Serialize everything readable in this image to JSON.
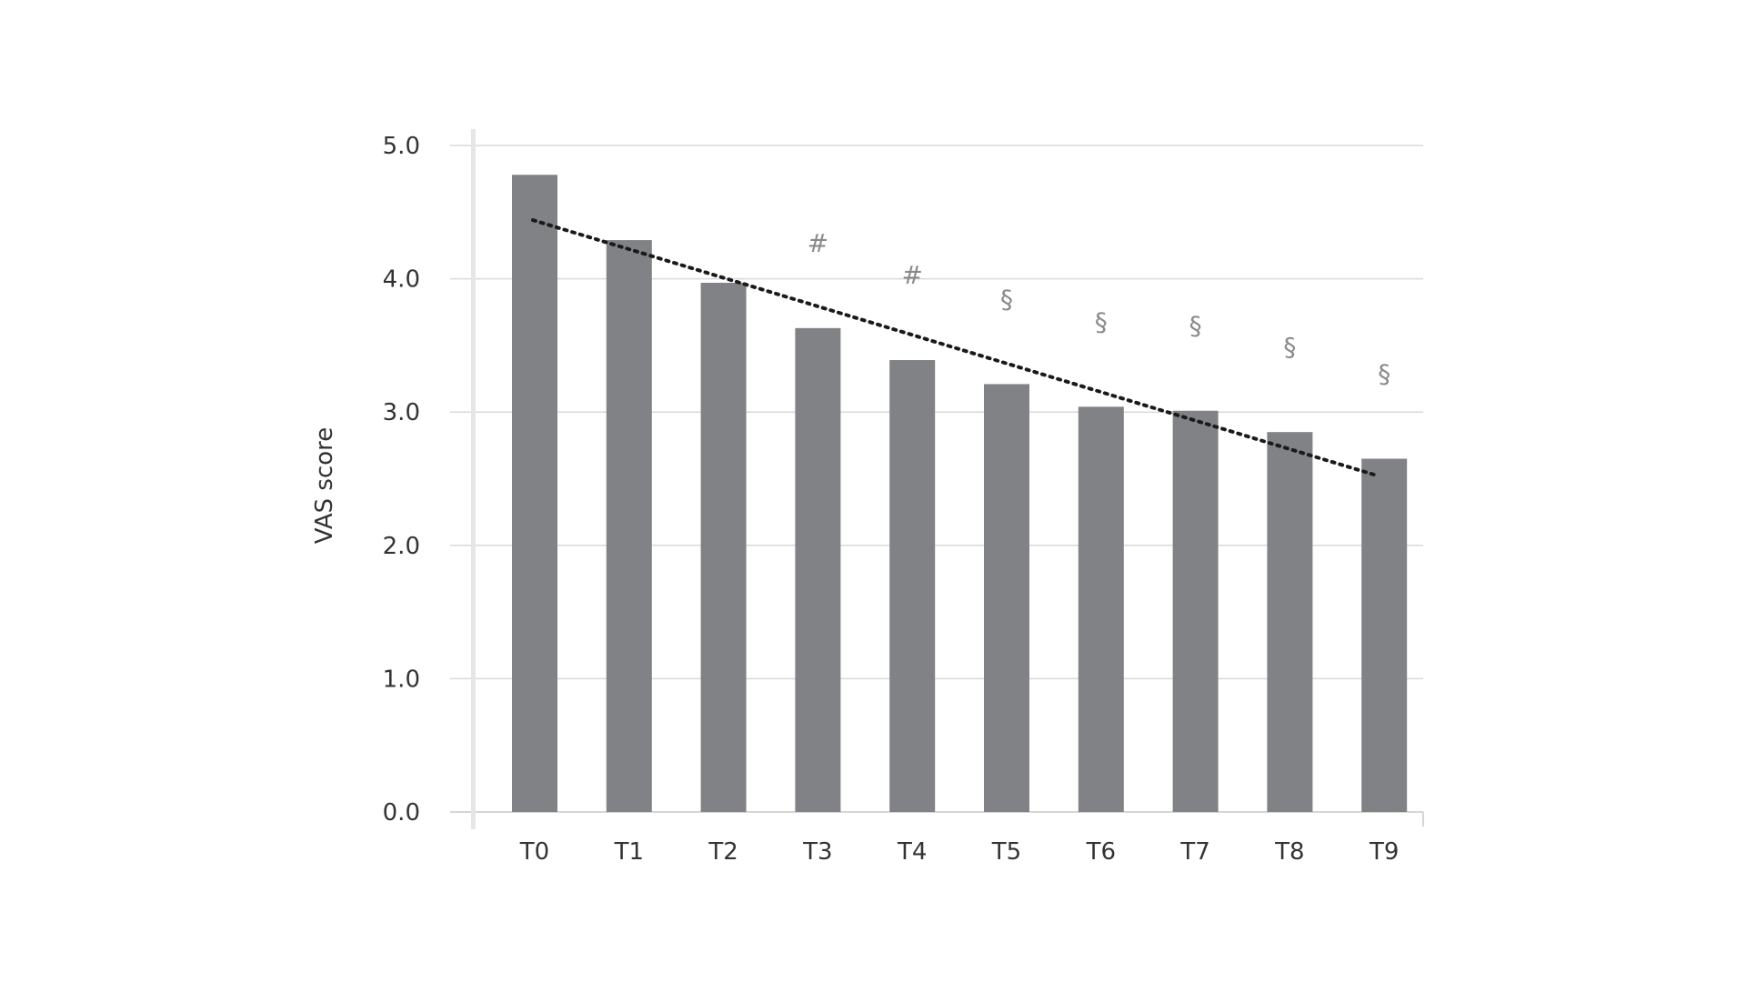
{
  "chart_data": {
    "type": "bar",
    "categories": [
      "T0",
      "T1",
      "T2",
      "T3",
      "T4",
      "T5",
      "T6",
      "T7",
      "T8",
      "T9"
    ],
    "values": [
      4.78,
      4.29,
      3.97,
      3.63,
      3.39,
      3.21,
      3.04,
      3.01,
      2.85,
      2.65
    ],
    "annotations": [
      "",
      "",
      "",
      "#",
      "#",
      "§",
      "§",
      "§",
      "§",
      "§"
    ],
    "title": "",
    "xlabel": "",
    "ylabel": "VAS score",
    "ylim": [
      0,
      5
    ],
    "yticks": [
      "0.0",
      "1.0",
      "2.0",
      "3.0",
      "4.0",
      "5.0"
    ],
    "trendline": {
      "style": "dotted",
      "start": {
        "category": "T0",
        "value": 4.44
      },
      "end": {
        "category": "T9",
        "value": 2.52
      }
    },
    "grid": true,
    "legend": "none",
    "bar_color": "#808285",
    "grid_color": "#d9d9d9",
    "trendline_color": "#1a1a1a",
    "annotation_color": "#8a8a8a"
  }
}
